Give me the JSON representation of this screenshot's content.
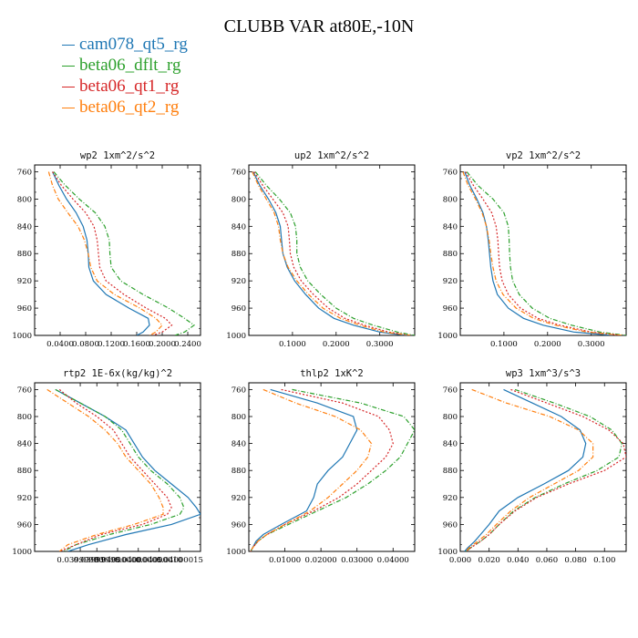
{
  "title": "CLUBB VAR at80E,-10N",
  "legend": [
    {
      "name": "cam078_qt5_rg",
      "color": "#1f77b4"
    },
    {
      "name": "beta06_dflt_rg",
      "color": "#2ca02c"
    },
    {
      "name": "beta06_qt1_rg",
      "color": "#d62728"
    },
    {
      "name": "beta06_qt2_rg",
      "color": "#ff7f0e"
    }
  ],
  "chart_data": [
    {
      "type": "line",
      "title": "wp2  1xm^2/s^2",
      "ylim": [
        1000,
        750
      ],
      "yticks": [
        760,
        800,
        840,
        880,
        920,
        960,
        1000
      ],
      "xlim": [
        0.0,
        0.26
      ],
      "xticks": [
        0.04,
        0.08,
        0.12,
        0.16,
        0.2,
        0.24
      ],
      "xticklabels": [
        "0.0400",
        "0.0800",
        "0.1200",
        "0.1600",
        "0.2000",
        "0.2400"
      ],
      "y": [
        760,
        780,
        800,
        820,
        840,
        860,
        880,
        900,
        920,
        940,
        960,
        975,
        985,
        995,
        1000
      ],
      "series": [
        {
          "name": "cam078_qt5_rg",
          "values": [
            0.028,
            0.038,
            0.05,
            0.065,
            0.076,
            0.082,
            0.084,
            0.085,
            0.092,
            0.112,
            0.148,
            0.178,
            0.18,
            0.17,
            0.16
          ]
        },
        {
          "name": "beta06_dflt_rg",
          "values": [
            0.03,
            0.048,
            0.07,
            0.095,
            0.11,
            0.117,
            0.118,
            0.12,
            0.135,
            0.17,
            0.21,
            0.235,
            0.25,
            0.235,
            0.22
          ]
        },
        {
          "name": "beta06_qt1_rg",
          "values": [
            0.028,
            0.042,
            0.06,
            0.08,
            0.093,
            0.098,
            0.1,
            0.102,
            0.112,
            0.14,
            0.175,
            0.205,
            0.215,
            0.2,
            0.185
          ]
        },
        {
          "name": "beta06_qt2_rg",
          "values": [
            0.022,
            0.028,
            0.037,
            0.052,
            0.068,
            0.078,
            0.084,
            0.088,
            0.098,
            0.125,
            0.165,
            0.19,
            0.2,
            0.19,
            0.18
          ]
        }
      ]
    },
    {
      "type": "line",
      "title": "up2  1xm^2/s^2",
      "ylim": [
        1000,
        750
      ],
      "yticks": [
        760,
        800,
        840,
        880,
        920,
        960,
        1000
      ],
      "xlim": [
        0.0,
        0.38
      ],
      "xticks": [
        0.1,
        0.2,
        0.3
      ],
      "xticklabels": [
        "0.1000",
        "0.2000",
        "0.3000"
      ],
      "y": [
        760,
        780,
        800,
        820,
        840,
        860,
        880,
        900,
        920,
        940,
        960,
        975,
        985,
        995,
        1000
      ],
      "series": [
        {
          "name": "cam078_qt5_rg",
          "values": [
            0.01,
            0.025,
            0.045,
            0.062,
            0.072,
            0.075,
            0.078,
            0.088,
            0.105,
            0.13,
            0.16,
            0.195,
            0.24,
            0.3,
            0.36
          ]
        },
        {
          "name": "beta06_dflt_rg",
          "values": [
            0.015,
            0.04,
            0.07,
            0.095,
            0.107,
            0.11,
            0.11,
            0.118,
            0.135,
            0.165,
            0.2,
            0.24,
            0.285,
            0.34,
            0.38
          ]
        },
        {
          "name": "beta06_qt1_rg",
          "values": [
            0.012,
            0.032,
            0.055,
            0.078,
            0.09,
            0.093,
            0.095,
            0.103,
            0.12,
            0.148,
            0.182,
            0.22,
            0.265,
            0.32,
            0.37
          ]
        },
        {
          "name": "beta06_qt2_rg",
          "values": [
            0.008,
            0.022,
            0.04,
            0.058,
            0.068,
            0.072,
            0.078,
            0.09,
            0.11,
            0.137,
            0.17,
            0.21,
            0.255,
            0.31,
            0.37
          ]
        }
      ]
    },
    {
      "type": "line",
      "title": "vp2  1xm^2/s^2",
      "ylim": [
        1000,
        750
      ],
      "yticks": [
        760,
        800,
        840,
        880,
        920,
        960,
        1000
      ],
      "xlim": [
        0.0,
        0.38
      ],
      "xticks": [
        0.1,
        0.2,
        0.3
      ],
      "xticklabels": [
        "0.1000",
        "0.2000",
        "0.3000"
      ],
      "y": [
        760,
        780,
        800,
        820,
        840,
        860,
        880,
        900,
        920,
        940,
        960,
        975,
        985,
        995,
        1000
      ],
      "series": [
        {
          "name": "cam078_qt5_rg",
          "values": [
            0.01,
            0.022,
            0.038,
            0.052,
            0.06,
            0.064,
            0.067,
            0.07,
            0.075,
            0.085,
            0.11,
            0.145,
            0.19,
            0.26,
            0.35
          ]
        },
        {
          "name": "beta06_dflt_rg",
          "values": [
            0.015,
            0.04,
            0.075,
            0.1,
            0.11,
            0.112,
            0.113,
            0.115,
            0.12,
            0.135,
            0.165,
            0.205,
            0.255,
            0.32,
            0.38
          ]
        },
        {
          "name": "beta06_qt1_rg",
          "values": [
            0.012,
            0.03,
            0.052,
            0.072,
            0.082,
            0.086,
            0.088,
            0.09,
            0.096,
            0.11,
            0.138,
            0.178,
            0.228,
            0.3,
            0.37
          ]
        },
        {
          "name": "beta06_qt2_rg",
          "values": [
            0.006,
            0.018,
            0.035,
            0.05,
            0.06,
            0.066,
            0.07,
            0.075,
            0.082,
            0.098,
            0.128,
            0.168,
            0.218,
            0.29,
            0.37
          ]
        }
      ]
    },
    {
      "type": "line",
      "title": "rtp2  1E-6x(kg/kg)^2",
      "ylim": [
        1000,
        750
      ],
      "yticks": [
        760,
        800,
        840,
        880,
        920,
        960,
        1000
      ],
      "xlim": [
        0.039998,
        0.040002
      ],
      "xticks": [
        0.0399991,
        0.0399995,
        0.04,
        0.0400005,
        0.040001,
        0.0400015
      ],
      "xticklabels": [
        "0.03999990",
        "0.03999995",
        "0.04000000",
        "0.04000005",
        "0.04000010",
        "0.04000015"
      ],
      "y": [
        760,
        780,
        800,
        820,
        840,
        860,
        880,
        900,
        920,
        935,
        945,
        960,
        975,
        990,
        1000
      ],
      "series": [
        {
          "name": "cam078_qt5_rg",
          "values": [
            0.0399985,
            0.0399991,
            0.0399997,
            0.0400002,
            0.0400004,
            0.0400006,
            0.0400009,
            0.0400013,
            0.0400017,
            0.0400019,
            0.040002,
            0.0400013,
            0.0400002,
            0.0399993,
            0.0399988
          ]
        },
        {
          "name": "beta06_dflt_rg",
          "values": [
            0.0399985,
            0.0399991,
            0.0399997,
            0.0400001,
            0.0400003,
            0.0400005,
            0.0400008,
            0.0400012,
            0.0400015,
            0.0400016,
            0.0400015,
            0.0400008,
            0.0399998,
            0.039999,
            0.0399987
          ]
        },
        {
          "name": "beta06_qt1_rg",
          "values": [
            0.0399986,
            0.039999,
            0.0399995,
            0.0399999,
            0.0400001,
            0.0400003,
            0.0400006,
            0.0400009,
            0.0400012,
            0.0400013,
            0.0400012,
            0.0400006,
            0.0399996,
            0.039999,
            0.0399986
          ]
        },
        {
          "name": "beta06_qt2_rg",
          "values": [
            0.0399983,
            0.0399988,
            0.0399993,
            0.0399997,
            0.04,
            0.0400002,
            0.0400005,
            0.0400008,
            0.040001,
            0.0400011,
            0.0400011,
            0.0400004,
            0.0399995,
            0.0399988,
            0.0399986
          ]
        }
      ]
    },
    {
      "type": "line",
      "title": "thlp2  1xK^2",
      "ylim": [
        1000,
        750
      ],
      "yticks": [
        760,
        800,
        840,
        880,
        920,
        960,
        1000
      ],
      "xlim": [
        0.0,
        0.046
      ],
      "xticks": [
        0.01,
        0.02,
        0.03,
        0.04
      ],
      "xticklabels": [
        "0.01000",
        "0.02000",
        "0.03000",
        "0.04000"
      ],
      "y": [
        760,
        780,
        800,
        820,
        840,
        860,
        880,
        900,
        920,
        940,
        960,
        975,
        985,
        995,
        1000
      ],
      "series": [
        {
          "name": "cam078_qt5_rg",
          "values": [
            0.006,
            0.019,
            0.029,
            0.03,
            0.028,
            0.026,
            0.022,
            0.019,
            0.018,
            0.016,
            0.009,
            0.004,
            0.002,
            0.001,
            0.0005
          ]
        },
        {
          "name": "beta06_dflt_rg",
          "values": [
            0.012,
            0.031,
            0.043,
            0.046,
            0.044,
            0.042,
            0.038,
            0.033,
            0.027,
            0.019,
            0.011,
            0.005,
            0.0025,
            0.001,
            0.0005
          ]
        },
        {
          "name": "beta06_qt1_rg",
          "values": [
            0.009,
            0.026,
            0.036,
            0.039,
            0.04,
            0.038,
            0.034,
            0.03,
            0.025,
            0.018,
            0.01,
            0.005,
            0.0025,
            0.001,
            0.0005
          ]
        },
        {
          "name": "beta06_qt2_rg",
          "values": [
            0.004,
            0.013,
            0.024,
            0.031,
            0.034,
            0.033,
            0.03,
            0.026,
            0.022,
            0.017,
            0.01,
            0.005,
            0.0025,
            0.001,
            0.0005
          ]
        }
      ]
    },
    {
      "type": "line",
      "title": "wp3  1xm^3/s^3",
      "ylim": [
        1000,
        750
      ],
      "yticks": [
        760,
        800,
        840,
        880,
        920,
        960,
        1000
      ],
      "xlim": [
        0.0,
        0.115
      ],
      "xticks": [
        0.0,
        0.02,
        0.04,
        0.06,
        0.08,
        0.1
      ],
      "xticklabels": [
        "0.000",
        "0.020",
        "0.040",
        "0.060",
        "0.080",
        "0.100"
      ],
      "y": [
        760,
        780,
        800,
        820,
        840,
        860,
        880,
        900,
        920,
        940,
        960,
        975,
        985,
        995,
        1000
      ],
      "series": [
        {
          "name": "cam078_qt5_rg",
          "values": [
            0.03,
            0.05,
            0.07,
            0.083,
            0.087,
            0.085,
            0.075,
            0.058,
            0.04,
            0.027,
            0.02,
            0.014,
            0.01,
            0.005,
            0.003
          ]
        },
        {
          "name": "beta06_dflt_rg",
          "values": [
            0.038,
            0.065,
            0.09,
            0.105,
            0.112,
            0.11,
            0.095,
            0.072,
            0.052,
            0.037,
            0.027,
            0.02,
            0.014,
            0.007,
            0.004
          ]
        },
        {
          "name": "beta06_qt1_rg",
          "values": [
            0.035,
            0.06,
            0.085,
            0.103,
            0.113,
            0.115,
            0.1,
            0.075,
            0.053,
            0.038,
            0.027,
            0.02,
            0.014,
            0.007,
            0.004
          ]
        },
        {
          "name": "beta06_qt2_rg",
          "values": [
            0.008,
            0.032,
            0.062,
            0.082,
            0.092,
            0.092,
            0.082,
            0.065,
            0.048,
            0.035,
            0.025,
            0.018,
            0.012,
            0.006,
            0.004
          ]
        }
      ]
    }
  ]
}
